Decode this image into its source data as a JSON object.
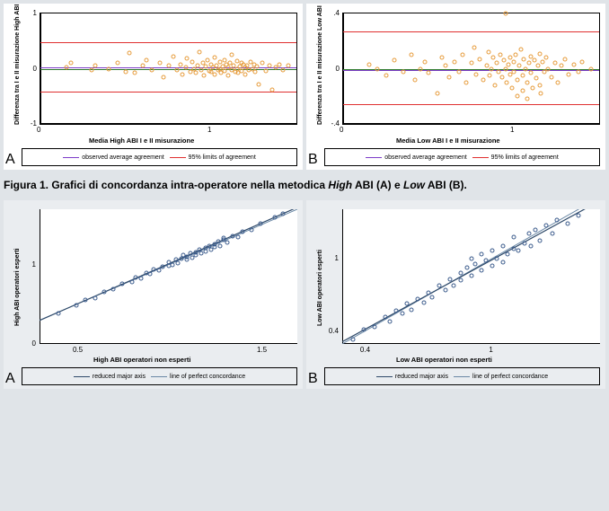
{
  "fig1": {
    "A": {
      "type": "scatter-bland-altman",
      "ylabel": "Differenza tra I e II misurazione High ABI",
      "xlabel": "Media High ABI I e II misurazione",
      "xlim": [
        0,
        1.5
      ],
      "ylim": [
        -1,
        1
      ],
      "xticks": [
        0,
        1
      ],
      "yticks": [
        -1,
        0,
        1
      ],
      "background": "#ffffff",
      "point_color": "#e69b3a",
      "lines": {
        "zero": {
          "y": 0.0,
          "color": "#2f7a2f",
          "width": 0.8
        },
        "mean": {
          "y": 0.02,
          "color": "#7d3cc8",
          "width": 1.3
        },
        "upper": {
          "y": 0.48,
          "color": "#e03030",
          "width": 1.3
        },
        "lower": {
          "y": -0.42,
          "color": "#e03030",
          "width": 1.3
        }
      },
      "points": [
        [
          0.15,
          0.03
        ],
        [
          0.18,
          0.1
        ],
        [
          0.3,
          -0.02
        ],
        [
          0.32,
          0.05
        ],
        [
          0.4,
          0.0
        ],
        [
          0.45,
          0.1
        ],
        [
          0.5,
          -0.05
        ],
        [
          0.52,
          0.28
        ],
        [
          0.55,
          -0.08
        ],
        [
          0.6,
          0.05
        ],
        [
          0.62,
          0.15
        ],
        [
          0.65,
          -0.02
        ],
        [
          0.7,
          0.1
        ],
        [
          0.72,
          -0.15
        ],
        [
          0.75,
          0.05
        ],
        [
          0.78,
          0.22
        ],
        [
          0.8,
          -0.03
        ],
        [
          0.82,
          0.08
        ],
        [
          0.83,
          -0.1
        ],
        [
          0.85,
          0.02
        ],
        [
          0.86,
          0.18
        ],
        [
          0.88,
          -0.05
        ],
        [
          0.89,
          0.12
        ],
        [
          0.9,
          0.0
        ],
        [
          0.91,
          -0.08
        ],
        [
          0.92,
          0.06
        ],
        [
          0.93,
          0.3
        ],
        [
          0.94,
          -0.02
        ],
        [
          0.95,
          0.1
        ],
        [
          0.96,
          -0.12
        ],
        [
          0.97,
          0.04
        ],
        [
          0.98,
          0.16
        ],
        [
          0.99,
          -0.04
        ],
        [
          1.0,
          0.08
        ],
        [
          1.0,
          -0.06
        ],
        [
          1.01,
          0.02
        ],
        [
          1.02,
          0.2
        ],
        [
          1.02,
          -0.1
        ],
        [
          1.03,
          0.06
        ],
        [
          1.04,
          -0.02
        ],
        [
          1.05,
          0.12
        ],
        [
          1.05,
          0.0
        ],
        [
          1.06,
          -0.08
        ],
        [
          1.07,
          0.04
        ],
        [
          1.08,
          0.16
        ],
        [
          1.08,
          -0.04
        ],
        [
          1.09,
          0.08
        ],
        [
          1.1,
          0.02
        ],
        [
          1.1,
          -0.12
        ],
        [
          1.11,
          0.1
        ],
        [
          1.12,
          -0.02
        ],
        [
          1.12,
          0.26
        ],
        [
          1.13,
          0.06
        ],
        [
          1.14,
          -0.06
        ],
        [
          1.15,
          0.14
        ],
        [
          1.15,
          0.0
        ],
        [
          1.16,
          -0.08
        ],
        [
          1.17,
          0.04
        ],
        [
          1.18,
          0.1
        ],
        [
          1.18,
          -0.04
        ],
        [
          1.19,
          0.08
        ],
        [
          1.2,
          0.02
        ],
        [
          1.2,
          -0.1
        ],
        [
          1.21,
          0.06
        ],
        [
          1.22,
          -0.02
        ],
        [
          1.23,
          0.12
        ],
        [
          1.24,
          0.0
        ],
        [
          1.25,
          0.08
        ],
        [
          1.26,
          -0.06
        ],
        [
          1.27,
          0.04
        ],
        [
          1.28,
          -0.28
        ],
        [
          1.3,
          0.1
        ],
        [
          1.32,
          -0.04
        ],
        [
          1.34,
          0.06
        ],
        [
          1.36,
          -0.38
        ],
        [
          1.38,
          0.02
        ],
        [
          1.4,
          0.08
        ],
        [
          1.42,
          -0.02
        ],
        [
          1.45,
          0.06
        ]
      ]
    },
    "B": {
      "type": "scatter-bland-altman",
      "ylabel": "Differenza tra I e II misurazione Low ABI",
      "xlabel": "Media Low ABI I e II misurazione",
      "xlim": [
        0,
        1.5
      ],
      "ylim": [
        -0.4,
        0.4
      ],
      "xticks": [
        0,
        1
      ],
      "yticks": [
        -0.4,
        0,
        0.4
      ],
      "yticklabels": [
        "-.4",
        "0",
        ".4"
      ],
      "background": "#ffffff",
      "point_color": "#e69b3a",
      "lines": {
        "zero": {
          "y": 0.0,
          "color": "#2f7a2f",
          "width": 0.8
        },
        "mean": {
          "y": -0.01,
          "color": "#7d3cc8",
          "width": 1.3
        },
        "upper": {
          "y": 0.27,
          "color": "#e03030",
          "width": 1.3
        },
        "lower": {
          "y": -0.26,
          "color": "#e03030",
          "width": 1.3
        }
      },
      "points": [
        [
          0.15,
          0.03
        ],
        [
          0.2,
          0.0
        ],
        [
          0.25,
          -0.05
        ],
        [
          0.3,
          0.06
        ],
        [
          0.35,
          -0.02
        ],
        [
          0.4,
          0.1
        ],
        [
          0.42,
          -0.08
        ],
        [
          0.45,
          0.0
        ],
        [
          0.48,
          0.05
        ],
        [
          0.5,
          -0.03
        ],
        [
          0.55,
          -0.18
        ],
        [
          0.58,
          0.08
        ],
        [
          0.6,
          0.02
        ],
        [
          0.62,
          -0.06
        ],
        [
          0.65,
          0.05
        ],
        [
          0.68,
          -0.02
        ],
        [
          0.7,
          0.1
        ],
        [
          0.72,
          -0.1
        ],
        [
          0.75,
          0.04
        ],
        [
          0.77,
          0.15
        ],
        [
          0.78,
          -0.04
        ],
        [
          0.8,
          0.07
        ],
        [
          0.82,
          -0.08
        ],
        [
          0.84,
          0.02
        ],
        [
          0.85,
          0.12
        ],
        [
          0.86,
          -0.05
        ],
        [
          0.87,
          0.0
        ],
        [
          0.88,
          0.08
        ],
        [
          0.89,
          -0.12
        ],
        [
          0.9,
          0.04
        ],
        [
          0.91,
          -0.02
        ],
        [
          0.92,
          0.1
        ],
        [
          0.93,
          -0.06
        ],
        [
          0.94,
          0.06
        ],
        [
          0.95,
          0.0
        ],
        [
          0.95,
          0.4
        ],
        [
          0.96,
          -0.1
        ],
        [
          0.97,
          0.03
        ],
        [
          0.98,
          0.08
        ],
        [
          0.98,
          -0.04
        ],
        [
          0.99,
          -0.14
        ],
        [
          1.0,
          0.05
        ],
        [
          1.0,
          -0.02
        ],
        [
          1.01,
          0.1
        ],
        [
          1.02,
          -0.08
        ],
        [
          1.02,
          -0.2
        ],
        [
          1.03,
          0.02
        ],
        [
          1.04,
          0.14
        ],
        [
          1.05,
          -0.05
        ],
        [
          1.05,
          -0.16
        ],
        [
          1.06,
          0.07
        ],
        [
          1.07,
          0.0
        ],
        [
          1.08,
          -0.1
        ],
        [
          1.08,
          -0.22
        ],
        [
          1.09,
          0.04
        ],
        [
          1.1,
          0.09
        ],
        [
          1.1,
          -0.03
        ],
        [
          1.11,
          -0.14
        ],
        [
          1.12,
          0.06
        ],
        [
          1.13,
          -0.07
        ],
        [
          1.14,
          0.02
        ],
        [
          1.15,
          0.11
        ],
        [
          1.15,
          -0.12
        ],
        [
          1.16,
          -0.18
        ],
        [
          1.17,
          0.05
        ],
        [
          1.18,
          -0.02
        ],
        [
          1.19,
          0.08
        ],
        [
          1.2,
          0.0
        ],
        [
          1.22,
          -0.06
        ],
        [
          1.24,
          0.04
        ],
        [
          1.26,
          -0.1
        ],
        [
          1.28,
          0.02
        ],
        [
          1.3,
          0.07
        ],
        [
          1.32,
          -0.04
        ],
        [
          1.35,
          0.03
        ],
        [
          1.38,
          -0.02
        ],
        [
          1.4,
          0.05
        ],
        [
          1.45,
          0.0
        ]
      ]
    },
    "legend": {
      "obs": "observed average agreement",
      "lim": "95% limits of agreement",
      "obs_color": "#7d3cc8",
      "lim_color": "#e03030"
    },
    "caption_prefix": "Figura 1. Grafici di concordanza intra-operatore nella metodica ",
    "caption_high": "High",
    "caption_mid": " ABI (A) e ",
    "caption_low": "Low",
    "caption_end": " ABI (B)."
  },
  "fig2": {
    "A": {
      "type": "scatter-concordance",
      "ylabel": "High ABI operatori esperti",
      "xlabel": "High ABI operatori non esperti",
      "xlim": [
        0.3,
        1.7
      ],
      "ylim": [
        0,
        1.7
      ],
      "xticks": [
        0.5,
        1.5
      ],
      "yticks": [
        0,
        1
      ],
      "background": "#eaedf0",
      "point_color": "#3b5b8c",
      "lines": {
        "rma": {
          "slope": 1.02,
          "intercept": -0.01,
          "color": "#2f4a6a",
          "width": 1.2
        },
        "perfect": {
          "slope": 1.0,
          "intercept": 0.0,
          "color": "#6a88a5",
          "width": 1.0
        }
      },
      "points": [
        [
          0.4,
          0.38
        ],
        [
          0.5,
          0.49
        ],
        [
          0.55,
          0.55
        ],
        [
          0.6,
          0.58
        ],
        [
          0.65,
          0.66
        ],
        [
          0.7,
          0.69
        ],
        [
          0.75,
          0.76
        ],
        [
          0.8,
          0.78
        ],
        [
          0.82,
          0.84
        ],
        [
          0.85,
          0.83
        ],
        [
          0.88,
          0.9
        ],
        [
          0.9,
          0.88
        ],
        [
          0.92,
          0.94
        ],
        [
          0.95,
          0.93
        ],
        [
          0.97,
          0.98
        ],
        [
          1.0,
          0.99
        ],
        [
          1.0,
          1.03
        ],
        [
          1.02,
          1.0
        ],
        [
          1.04,
          1.06
        ],
        [
          1.05,
          1.02
        ],
        [
          1.07,
          1.08
        ],
        [
          1.08,
          1.12
        ],
        [
          1.1,
          1.07
        ],
        [
          1.1,
          1.1
        ],
        [
          1.12,
          1.14
        ],
        [
          1.13,
          1.09
        ],
        [
          1.15,
          1.16
        ],
        [
          1.15,
          1.12
        ],
        [
          1.17,
          1.19
        ],
        [
          1.18,
          1.14
        ],
        [
          1.2,
          1.21
        ],
        [
          1.2,
          1.17
        ],
        [
          1.22,
          1.24
        ],
        [
          1.23,
          1.19
        ],
        [
          1.25,
          1.26
        ],
        [
          1.25,
          1.22
        ],
        [
          1.27,
          1.29
        ],
        [
          1.28,
          1.24
        ],
        [
          1.3,
          1.31
        ],
        [
          1.3,
          1.34
        ],
        [
          1.32,
          1.28
        ],
        [
          1.35,
          1.36
        ],
        [
          1.38,
          1.35
        ],
        [
          1.4,
          1.42
        ],
        [
          1.45,
          1.44
        ],
        [
          1.5,
          1.52
        ],
        [
          1.58,
          1.6
        ],
        [
          1.62,
          1.64
        ]
      ]
    },
    "B": {
      "type": "scatter-concordance",
      "ylabel": "Low ABI operatori esperti",
      "xlabel": "Low ABI operatori non esperti",
      "xlim": [
        0.3,
        1.5
      ],
      "ylim": [
        0.3,
        1.4
      ],
      "xticks": [
        0.4,
        1
      ],
      "yticks": [
        0.4,
        1
      ],
      "xticklabels": [
        "0.4",
        "1"
      ],
      "yticklabels": [
        "0.4",
        "1"
      ],
      "background": "#eaedf0",
      "point_color": "#3b5b8c",
      "lines": {
        "rma": {
          "slope": 0.96,
          "intercept": 0.03,
          "color": "#2f4a6a",
          "width": 1.2
        },
        "perfect": {
          "slope": 1.0,
          "intercept": 0.0,
          "color": "#6a88a5",
          "width": 1.0
        }
      },
      "points": [
        [
          0.35,
          0.34
        ],
        [
          0.4,
          0.42
        ],
        [
          0.45,
          0.44
        ],
        [
          0.5,
          0.52
        ],
        [
          0.52,
          0.48
        ],
        [
          0.55,
          0.57
        ],
        [
          0.58,
          0.55
        ],
        [
          0.6,
          0.63
        ],
        [
          0.62,
          0.58
        ],
        [
          0.65,
          0.67
        ],
        [
          0.68,
          0.64
        ],
        [
          0.7,
          0.72
        ],
        [
          0.72,
          0.68
        ],
        [
          0.75,
          0.78
        ],
        [
          0.78,
          0.74
        ],
        [
          0.8,
          0.83
        ],
        [
          0.82,
          0.78
        ],
        [
          0.85,
          0.88
        ],
        [
          0.85,
          0.82
        ],
        [
          0.88,
          0.92
        ],
        [
          0.9,
          0.86
        ],
        [
          0.9,
          1.0
        ],
        [
          0.92,
          0.95
        ],
        [
          0.95,
          0.9
        ],
        [
          0.95,
          1.03
        ],
        [
          0.97,
          0.98
        ],
        [
          1.0,
          0.94
        ],
        [
          1.0,
          1.06
        ],
        [
          1.02,
          1.0
        ],
        [
          1.05,
          0.97
        ],
        [
          1.05,
          1.1
        ],
        [
          1.07,
          1.03
        ],
        [
          1.1,
          1.08
        ],
        [
          1.1,
          1.17
        ],
        [
          1.12,
          1.06
        ],
        [
          1.15,
          1.12
        ],
        [
          1.17,
          1.2
        ],
        [
          1.18,
          1.1
        ],
        [
          1.2,
          1.23
        ],
        [
          1.22,
          1.14
        ],
        [
          1.25,
          1.27
        ],
        [
          1.28,
          1.2
        ],
        [
          1.3,
          1.31
        ],
        [
          1.35,
          1.28
        ],
        [
          1.4,
          1.35
        ]
      ]
    },
    "legend": {
      "rma": "reduced major axis",
      "perf": "line of perfect concordance",
      "rma_color": "#2f4a6a",
      "perf_color": "#6a88a5"
    }
  }
}
